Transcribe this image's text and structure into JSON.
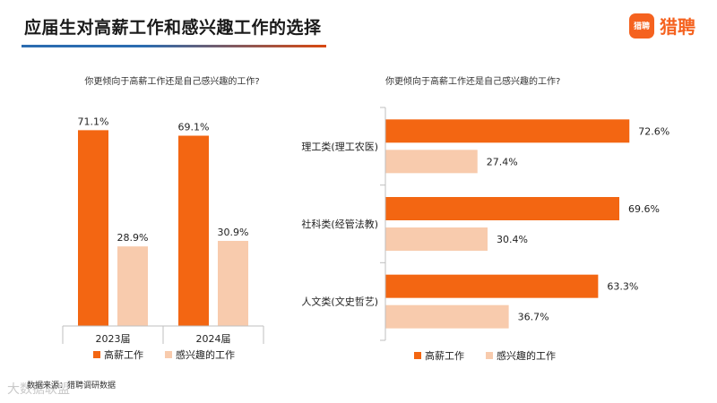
{
  "header": {
    "title": "应届生对高薪工作和感兴趣工作的选择",
    "brand_logo_text": "猎聘",
    "brand_name": "猎聘"
  },
  "colors": {
    "high_pay": "#F36612",
    "interest": "#F8CBAD",
    "axis": "#BFBFBF",
    "brand": "#F5621F"
  },
  "footer": {
    "source": "数据来源：猎聘调研数据",
    "watermark": "大数据联盟"
  },
  "chart_data": [
    {
      "type": "bar",
      "title": "你更倾向于高薪工作还是自己感兴趣的工作?",
      "categories": [
        "2023届",
        "2024届"
      ],
      "series": [
        {
          "name": "高薪工作",
          "values": [
            71.1,
            69.1
          ],
          "labels": [
            "71.1%",
            "69.1%"
          ]
        },
        {
          "name": "感兴趣的工作",
          "values": [
            28.9,
            30.9
          ],
          "labels": [
            "28.9%",
            "30.9%"
          ]
        }
      ],
      "ylim": [
        0,
        80
      ],
      "legend": "bottom",
      "grid": false
    },
    {
      "type": "bar",
      "orientation": "horizontal",
      "title": "你更倾向于高薪工作还是自己感兴趣的工作?",
      "categories": [
        "理工类(理工农医)",
        "社科类(经管法教)",
        "人文类(文史哲艺)"
      ],
      "series": [
        {
          "name": "高薪工作",
          "values": [
            72.6,
            69.6,
            63.3
          ],
          "labels": [
            "72.6%",
            "69.6%",
            "63.3%"
          ]
        },
        {
          "name": "感兴趣的工作",
          "values": [
            27.4,
            30.4,
            36.7
          ],
          "labels": [
            "27.4%",
            "30.4%",
            "36.7%"
          ]
        }
      ],
      "xlim": [
        0,
        80
      ],
      "legend": "bottom",
      "grid": false
    }
  ]
}
